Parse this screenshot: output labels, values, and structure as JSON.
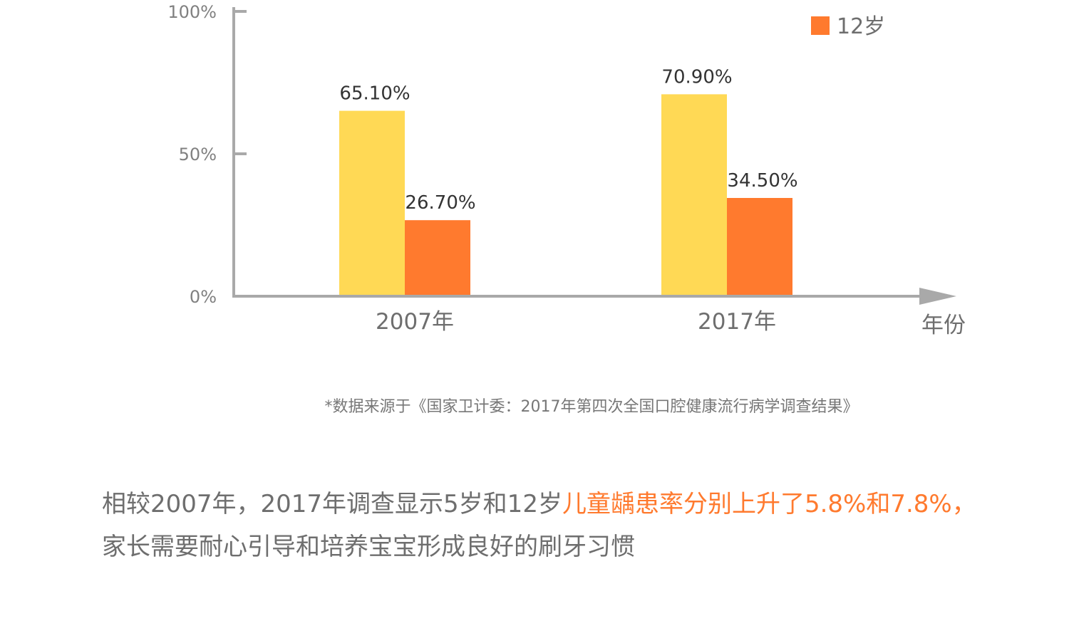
{
  "chart_data": {
    "type": "bar",
    "categories": [
      "2007年",
      "2017年"
    ],
    "series": [
      {
        "values": [
          65.1,
          70.9
        ],
        "color": "#ffd955"
      },
      {
        "name": "12岁",
        "values": [
          26.7,
          34.5
        ],
        "color": "#ff7a2e"
      }
    ],
    "data_labels": [
      [
        "65.10%",
        "70.90%"
      ],
      [
        "26.70%",
        "34.50%"
      ]
    ],
    "xlabel": "年份",
    "ylabel": "",
    "ylim": [
      0,
      100
    ],
    "yticks": [
      {
        "value": 0,
        "label": "0%"
      },
      {
        "value": 50,
        "label": "50%"
      },
      {
        "value": 100,
        "label": "100%"
      }
    ],
    "legend": {
      "placement": "top-right"
    },
    "grid": false,
    "axis_color": "#a9a9a9"
  },
  "source_note": "*数据来源于《国家卫计委：2017年第四次全国口腔健康流行病学调查结果》",
  "summary": {
    "part1": "相较2007年，2017年调查显示5岁和12岁",
    "part2": "儿童龋患率分别上升了5.8%和7.8%，",
    "part3": "家长需要耐心引导和培养宝宝形成良好的刷牙习惯"
  }
}
